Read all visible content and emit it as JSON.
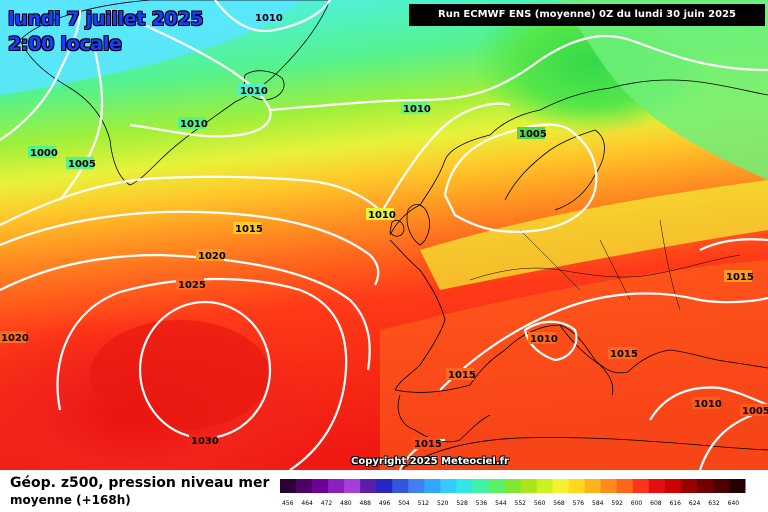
{
  "header": {
    "date": "lundi 7 juillet 2025",
    "time": "2:00 locale",
    "run": "Run ECMWF ENS (moyenne) 0Z du lundi 30 juin 2025"
  },
  "footer": {
    "title": "Géop. z500, pression niveau mer",
    "subtitle": "moyenne   (+168h)"
  },
  "copyright": "Copyright 2025 Meteociel.fr",
  "isobar_labels": [
    "1010",
    "1010",
    "1010",
    "1010",
    "1000",
    "1005",
    "1005",
    "1010",
    "1015",
    "1020",
    "1025",
    "1020",
    "1015",
    "1010",
    "1015",
    "1030",
    "1015",
    "1010",
    "1005",
    "1015"
  ],
  "scale": {
    "labels": [
      "456",
      "464",
      "472",
      "480",
      "488",
      "496",
      "504",
      "512",
      "520",
      "528",
      "536",
      "544",
      "552",
      "560",
      "568",
      "576",
      "584",
      "592",
      "600",
      "608",
      "616",
      "624",
      "632",
      "640"
    ],
    "colors": [
      "#2b0033",
      "#4d0066",
      "#6e0099",
      "#8c1fbf",
      "#a63fd9",
      "#5a1fa6",
      "#2626c4",
      "#3355e0",
      "#3f80f2",
      "#33a6ff",
      "#33ccff",
      "#33e6e6",
      "#40f2a6",
      "#59f266",
      "#7fe632",
      "#a6e61a",
      "#ccf020",
      "#f2f233",
      "#ffd91a",
      "#ffb31a",
      "#ff8c1a",
      "#ff661a",
      "#ff3319",
      "#e60f0f",
      "#cc0000",
      "#990000",
      "#730000",
      "#4d0000",
      "#260000"
    ]
  }
}
